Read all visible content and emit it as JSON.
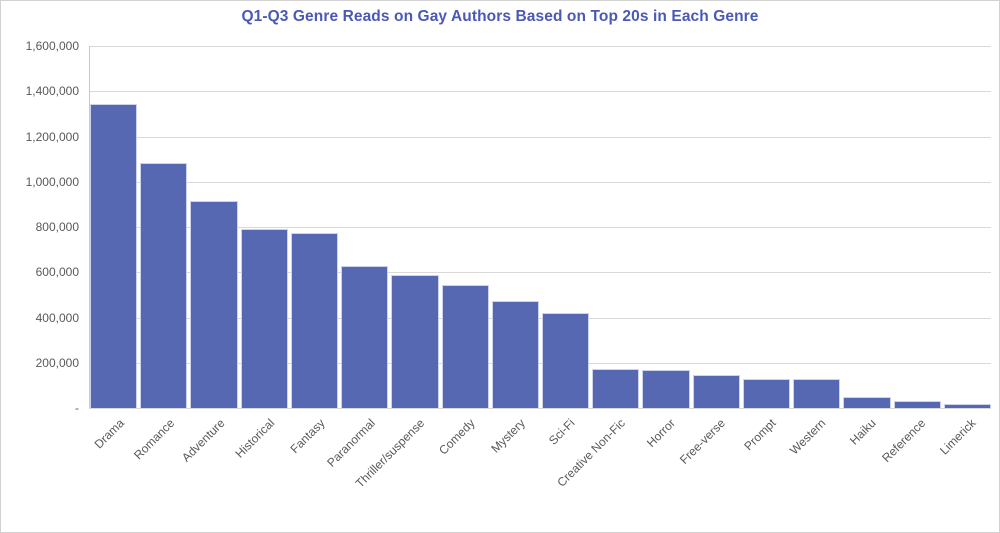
{
  "window": {
    "background": "#ffffff",
    "border_color": "#d2d2d2"
  },
  "chart_data": {
    "type": "bar",
    "title": "Q1-Q3 Genre Reads on Gay Authors Based on Top 20s in Each Genre",
    "categories": [
      "Drama",
      "Romance",
      "Adventure",
      "Historical",
      "Fantasy",
      "Paranormal",
      "Thriller/suspense",
      "Comedy",
      "Mystery",
      "Sci-Fi",
      "Creative Non-Fic",
      "Horror",
      "Free-verse",
      "Prompt",
      "Western",
      "Haiku",
      "Reference",
      "Limerick"
    ],
    "values": [
      1345000,
      1085000,
      915000,
      790000,
      772000,
      626000,
      590000,
      545000,
      475000,
      420000,
      172000,
      167000,
      146000,
      130000,
      130000,
      50000,
      31000,
      19000
    ],
    "xlabel": "",
    "ylabel": "",
    "ylim": [
      0,
      1600000
    ],
    "ytick_interval": 200000,
    "ytick_labels_top_to_bottom": [
      "1,600,000",
      "1,400,000",
      "1,200,000",
      "1,000,000",
      "800,000",
      "600,000",
      "400,000",
      "200,000",
      "-"
    ],
    "x_label_rotation_deg": 45,
    "grid": true,
    "legend": "none",
    "colors": {
      "title": "#4a59b5",
      "bar_fill": "#5768b2",
      "bar_border": "#cdd3ea",
      "gridline": "#d9d9d9",
      "axis_line": "#c9c9c9",
      "tick_label": "#595959"
    }
  }
}
